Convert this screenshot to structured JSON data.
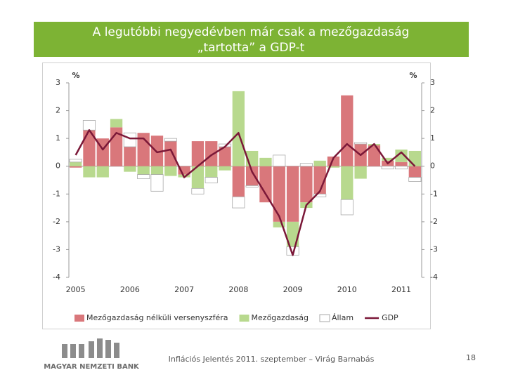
{
  "header": {
    "title": [
      "A legutóbbi negyedévben már csak a mezőgazdaság",
      "„tartotta” a GDP-t"
    ]
  },
  "chart_data": {
    "type": "stacked-bar-line",
    "ylabel": "%",
    "y2label": "%",
    "categories": [
      "2005",
      null,
      null,
      null,
      "2006",
      null,
      null,
      null,
      "2007",
      null,
      null,
      null,
      "2008",
      null,
      null,
      null,
      "2009",
      null,
      null,
      null,
      "2010",
      null,
      null,
      null,
      "2011",
      null
    ],
    "series": [
      {
        "name": "Mezőgazdaság nélküli versenyszféra",
        "color": "#d9777b",
        "kind": "bar",
        "values": [
          -0.05,
          1.3,
          1.0,
          1.4,
          0.7,
          1.2,
          1.1,
          0.9,
          -0.3,
          0.9,
          0.9,
          0.7,
          -1.1,
          -0.7,
          -1.3,
          -2.0,
          -2.0,
          -1.3,
          -1.0,
          0.35,
          2.55,
          0.8,
          0.75,
          0.2,
          0.15,
          -0.4
        ]
      },
      {
        "name": "Mezőgazdaság",
        "color": "#b8d98e",
        "kind": "bar",
        "values": [
          0.15,
          -0.4,
          -0.4,
          0.3,
          -0.2,
          -0.3,
          -0.3,
          -0.35,
          -0.1,
          -0.8,
          -0.4,
          -0.15,
          2.7,
          0.55,
          0.3,
          -0.2,
          -0.9,
          -0.2,
          0.2,
          -0.05,
          -1.2,
          -0.45,
          0.05,
          0.1,
          0.45,
          0.55
        ]
      },
      {
        "name": "Állam",
        "color": "#ffffff",
        "kind": "bar",
        "values": [
          0.1,
          0.35,
          0.0,
          0.0,
          0.5,
          -0.15,
          -0.6,
          0.1,
          0.0,
          -0.2,
          -0.2,
          0.1,
          -0.4,
          -0.05,
          0.0,
          0.4,
          -0.3,
          0.1,
          -0.1,
          0.0,
          -0.55,
          0.05,
          0.0,
          -0.1,
          -0.1,
          -0.15
        ]
      },
      {
        "name": "GDP",
        "color": "#7b1838",
        "kind": "line",
        "values": [
          0.4,
          1.3,
          0.6,
          1.2,
          1.0,
          1.0,
          0.5,
          0.6,
          -0.4,
          0.0,
          0.4,
          0.7,
          1.2,
          -0.2,
          -1.0,
          -1.8,
          -3.2,
          -1.4,
          -0.9,
          0.3,
          0.8,
          0.4,
          0.8,
          0.1,
          0.5,
          0.0
        ]
      }
    ],
    "ylim": [
      -4,
      3
    ],
    "yticks": [
      -4,
      -3,
      -2,
      -1,
      0,
      1,
      2,
      3
    ],
    "y2lim": [
      -4,
      3
    ],
    "y2ticks": [
      -4,
      -3,
      -2,
      -1,
      0,
      1,
      2,
      3
    ],
    "legend": "bottom"
  },
  "footer": {
    "bank": "MAGYAR NEMZETI BANK",
    "text": "Inflációs Jelentés 2011. szeptember – Virág Barnabás",
    "page": "18"
  }
}
